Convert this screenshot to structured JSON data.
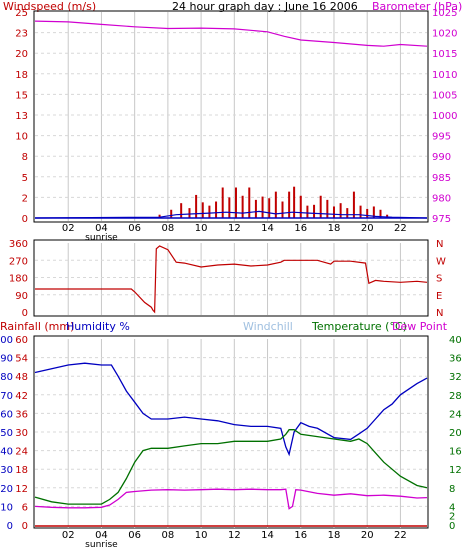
{
  "colors": {
    "wind": "#c00000",
    "wind_avg": "#0000c0",
    "barometer": "#d000d0",
    "direction": "#c00000",
    "rain": "#c00000",
    "humidity": "#0000c0",
    "windchill": "#a0c0e0",
    "temperature": "#007000",
    "dewpoint": "#d000d0",
    "rain_scale": "#0000c0"
  },
  "chart_data": [
    {
      "type": "line",
      "title": "24 hour graph day : June 16 2006",
      "left_label": "Windspeed (m/s)",
      "right_label": "Barometer (hPa)",
      "x_ticks": [
        "02",
        "04",
        "06",
        "08",
        "10",
        "12",
        "14",
        "16",
        "18",
        "20",
        "22"
      ],
      "x_sub": "sunrise",
      "left_ticks": [
        "0",
        "2",
        "5",
        "8",
        "10",
        "13",
        "15",
        "18",
        "20",
        "23",
        "25"
      ],
      "right_ticks": [
        "975",
        "980",
        "985",
        "990",
        "995",
        "1000",
        "1005",
        "1010",
        "1015",
        "1020",
        "1025"
      ],
      "left_range": [
        0,
        25
      ],
      "right_range": [
        975,
        1025
      ],
      "barometer_series": {
        "name": "Barometer",
        "x": [
          0,
          2,
          4,
          6,
          8,
          10,
          12,
          14,
          15,
          16,
          18,
          20,
          21,
          22,
          23.6
        ],
        "y": [
          1022.8,
          1022.6,
          1022.0,
          1021.4,
          1021.0,
          1021.1,
          1020.9,
          1020.2,
          1019.1,
          1018.2,
          1017.6,
          1016.9,
          1016.7,
          1017.1,
          1016.7
        ]
      },
      "wind_gust_series": {
        "name": "Windspeed",
        "x": [
          7.5,
          8.2,
          8.8,
          9.3,
          9.7,
          10.1,
          10.5,
          10.9,
          11.3,
          11.7,
          12.1,
          12.5,
          12.9,
          13.3,
          13.7,
          14.1,
          14.5,
          14.9,
          15.3,
          15.6,
          16.0,
          16.4,
          16.8,
          17.2,
          17.6,
          18.0,
          18.4,
          18.8,
          19.2,
          19.6,
          20.0,
          20.4,
          20.8,
          21.2
        ],
        "y": [
          0.4,
          1.0,
          1.8,
          1.2,
          2.8,
          1.9,
          1.5,
          2.0,
          3.7,
          2.5,
          3.7,
          2.7,
          3.7,
          2.2,
          2.6,
          2.4,
          3.2,
          2.0,
          3.2,
          3.8,
          2.7,
          1.5,
          1.6,
          2.7,
          2.2,
          1.4,
          1.8,
          1.2,
          3.2,
          1.5,
          1.1,
          1.4,
          1.0,
          0.4
        ]
      },
      "wind_avg_series": {
        "name": "Wind average",
        "x": [
          0,
          7.5,
          8.5,
          9.5,
          10.5,
          11.5,
          12.5,
          13.5,
          14.5,
          15.5,
          16.5,
          17.5,
          18.5,
          19.5,
          20.5,
          21.5,
          23.6
        ],
        "y": [
          0.0,
          0.1,
          0.4,
          0.5,
          0.6,
          0.7,
          0.6,
          0.8,
          0.5,
          0.7,
          0.6,
          0.5,
          0.4,
          0.4,
          0.2,
          0.1,
          0.0
        ]
      }
    },
    {
      "type": "line",
      "left_ticks": [
        "0",
        "90",
        "180",
        "270",
        "360"
      ],
      "right_ticks": [
        "N",
        "E",
        "S",
        "W",
        "N"
      ],
      "range": [
        0,
        360
      ],
      "direction_series": {
        "name": "Wind direction",
        "x": [
          0,
          5.8,
          6.0,
          6.6,
          7.0,
          7.1,
          7.2,
          7.3,
          7.5,
          8.0,
          8.5,
          9.0,
          10.0,
          11.0,
          12.0,
          13.0,
          14.0,
          14.8,
          15.0,
          16.0,
          17.0,
          17.8,
          18.0,
          19.0,
          19.9,
          20.1,
          20.5,
          21.0,
          22.0,
          23.0,
          23.6
        ],
        "y": [
          120,
          120,
          105,
          50,
          25,
          10,
          0,
          330,
          345,
          325,
          260,
          255,
          235,
          245,
          250,
          240,
          245,
          260,
          270,
          270,
          270,
          250,
          265,
          265,
          255,
          150,
          165,
          160,
          155,
          160,
          155
        ]
      }
    },
    {
      "type": "line",
      "left_label_rain": "Rainfall (mm)",
      "left_label_hum": "Humidity %",
      "center_label": "Windchill",
      "right_label_temp": "Temperature (°C)",
      "right_label_dew": "Dew Point",
      "x_ticks": [
        "02",
        "04",
        "06",
        "08",
        "10",
        "12",
        "14",
        "16",
        "18",
        "20",
        "22"
      ],
      "x_sub": "sunrise",
      "humidity_ticks": [
        "0",
        "10",
        "20",
        "30",
        "40",
        "50",
        "60",
        "70",
        "80",
        "90",
        "100"
      ],
      "rain_ticks": [
        "0",
        "6",
        "12",
        "18",
        "24",
        "30",
        "36",
        "42",
        "48",
        "54",
        "60"
      ],
      "temp_ticks": [
        "0",
        "2",
        "4",
        "8",
        "12",
        "16",
        "20",
        "24",
        "28",
        "32",
        "36",
        "40"
      ],
      "humidity_range": [
        0,
        100
      ],
      "temp_range": [
        0,
        40
      ],
      "humidity_series": {
        "name": "Humidity",
        "x": [
          0,
          1,
          2,
          3,
          4,
          4.6,
          5,
          5.5,
          6,
          6.5,
          7,
          8,
          9,
          10,
          11,
          12,
          13,
          14,
          14.8,
          15.1,
          15.3,
          15.6,
          16.0,
          16.5,
          17,
          18,
          19,
          19.5,
          20,
          20.5,
          21,
          21.5,
          22,
          23,
          23.6
        ],
        "y": [
          82,
          84,
          86,
          87,
          86,
          86,
          80,
          72,
          66,
          60,
          57,
          57,
          58,
          57,
          56,
          54,
          53,
          53,
          52,
          42,
          38,
          50,
          55,
          53,
          52,
          47,
          46,
          49,
          52,
          57,
          62,
          65,
          70,
          76,
          79
        ]
      },
      "temperature_series": {
        "name": "Temperature",
        "x": [
          0,
          1,
          2,
          3,
          4,
          4.5,
          5,
          5.5,
          6,
          6.5,
          7,
          8,
          9,
          10,
          11,
          12,
          13,
          14,
          14.8,
          15.1,
          15.3,
          15.6,
          16,
          17,
          18,
          19,
          19.5,
          20,
          20.5,
          21,
          22,
          23,
          23.6
        ],
        "y": [
          6.0,
          5.0,
          4.5,
          4.5,
          4.5,
          5.5,
          7,
          10,
          13.5,
          16.0,
          16.5,
          16.5,
          17.0,
          17.5,
          17.5,
          18.0,
          18.0,
          18.0,
          18.5,
          19.5,
          20.5,
          20.5,
          19.5,
          19.0,
          18.5,
          18.0,
          18.5,
          17.5,
          15.5,
          13.5,
          10.5,
          8.5,
          8.0
        ]
      },
      "dewpoint_series": {
        "name": "Dew Point",
        "x": [
          0,
          1,
          2,
          3,
          4,
          4.5,
          5,
          5.5,
          6,
          7,
          8,
          9,
          10,
          11,
          12,
          13,
          14,
          14.8,
          15.1,
          15.3,
          15.5,
          15.7,
          16,
          17,
          18,
          19,
          20,
          21,
          22,
          23,
          23.6
        ],
        "y": [
          4.0,
          3.8,
          3.7,
          3.7,
          3.8,
          4.3,
          5.5,
          7.0,
          7.2,
          7.5,
          7.6,
          7.5,
          7.6,
          7.7,
          7.6,
          7.7,
          7.6,
          7.6,
          7.7,
          3.5,
          4.0,
          7.6,
          7.5,
          6.8,
          6.4,
          6.7,
          6.3,
          6.4,
          6.2,
          5.8,
          5.9
        ]
      },
      "rain_series": {
        "name": "Rainfall",
        "x": [
          0,
          23.6
        ],
        "y": [
          0,
          0
        ]
      }
    }
  ]
}
